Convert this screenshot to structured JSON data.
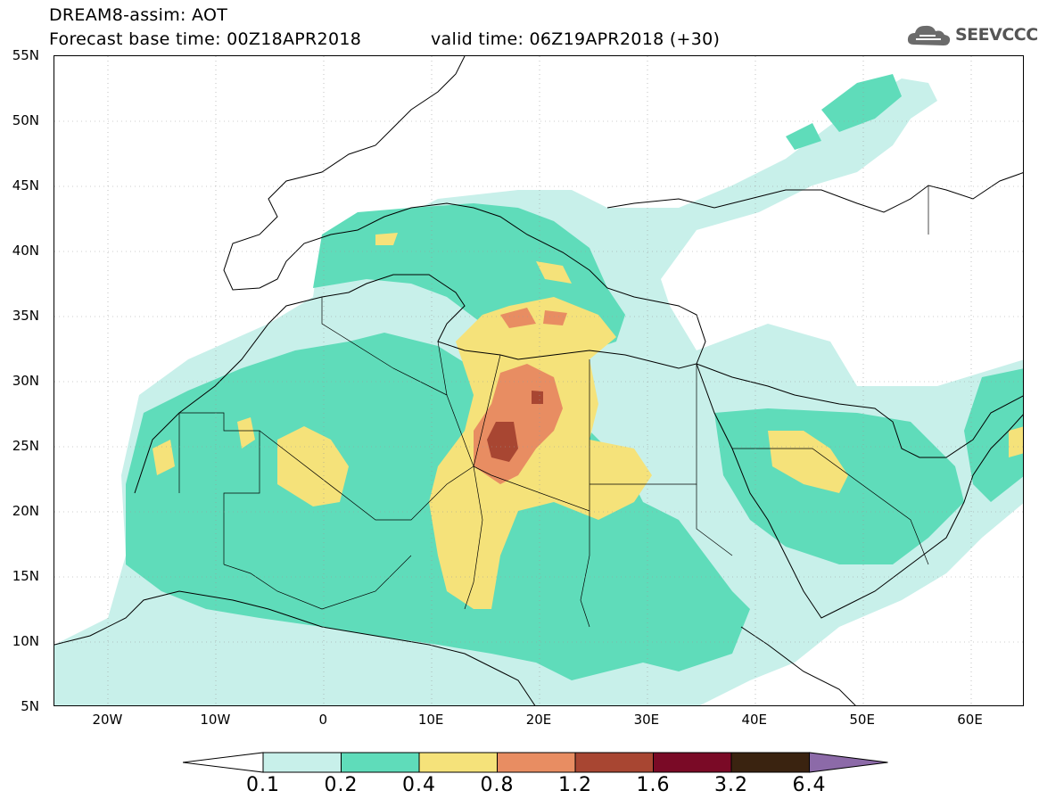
{
  "header": {
    "title_line1": "DREAM8-assim: AOT",
    "title_line2": "Forecast base time: 00Z18APR2018",
    "valid_time": "valid time: 06Z19APR2018 (+30)",
    "logo_text": "SEEVCCC"
  },
  "map": {
    "lat_labels": [
      "55N",
      "50N",
      "45N",
      "40N",
      "35N",
      "30N",
      "25N",
      "20N",
      "15N",
      "10N",
      "5N"
    ],
    "lon_labels": [
      "20W",
      "10W",
      "0",
      "10E",
      "20E",
      "30E",
      "40E",
      "50E",
      "60E"
    ],
    "extent": {
      "lon_min": -25,
      "lon_max": 65,
      "lat_min": 5,
      "lat_max": 55
    },
    "field": "AOT (aerosol optical thickness)",
    "plume_summary": "Highest AOT (1.2-1.6) over southern Libya near 15-20E, 24-30N; 0.4-0.8 band extending from Libya south to Chad and north to Greece/Ionian Sea; 0.2-0.4 across Sahara, Sahel and Arabian Peninsula"
  },
  "colorbar": {
    "levels": [
      "0.1",
      "0.2",
      "0.4",
      "0.8",
      "1.2",
      "1.6",
      "3.2",
      "6.4"
    ],
    "colors": [
      "#ffffff",
      "#c8f0ea",
      "#5fdcba",
      "#f5e27a",
      "#e88d62",
      "#a84632",
      "#7a0a26",
      "#3a2310",
      "#8c6aa8"
    ]
  }
}
